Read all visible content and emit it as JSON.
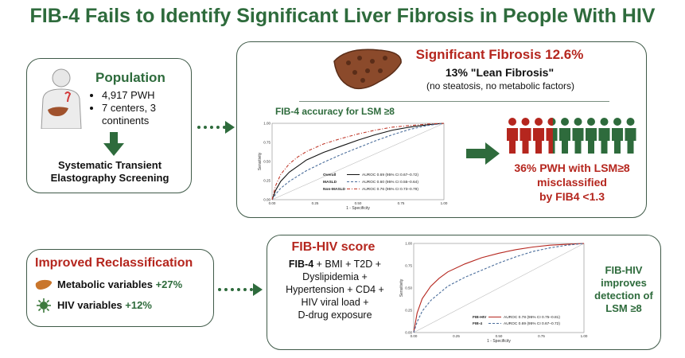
{
  "title": "FIB-4 Fails to Identify Significant Liver Fibrosis in People With HIV",
  "population": {
    "heading": "Population",
    "bullets": [
      "4,917 PWH",
      "7 centers, 3 continents"
    ],
    "screening": "Systematic Transient Elastography Screening"
  },
  "fibrosis": {
    "heading": "Significant Fibrosis 12.6%",
    "lean": "13% \"Lean Fibrosis\"",
    "lean_note": "(no steatosis, no metabolic factors)"
  },
  "accuracy": {
    "heading": "FIB-4 accuracy for LSM ≥8"
  },
  "misclassified": {
    "line1": "36% PWH with LSM≥8",
    "line2": "misclassified",
    "line3": "by FIB4 <1.3",
    "people_total": 10,
    "people_red": 3.6,
    "red_color": "#b5261e",
    "green_color": "#2e6b3c"
  },
  "reclassification": {
    "heading": "Improved Reclassification",
    "metabolic_label": "Metabolic variables",
    "metabolic_value": "+27%",
    "hiv_label": "HIV variables",
    "hiv_value": "+12%"
  },
  "fibhiv": {
    "heading": "FIB-HIV score",
    "formula_bold": "FIB-4",
    "formula_lines": [
      "+ BMI + T2D +",
      "Dyslipidemia +",
      "Hypertension + CD4 +",
      "HIV viral load +",
      "D-drug exposure"
    ],
    "improves": [
      "FIB-HIV",
      "improves",
      "detection of",
      "LSM ≥8"
    ]
  },
  "chart_data": [
    {
      "type": "line",
      "title": "FIB-4 accuracy for LSM ≥8",
      "xlabel": "1 - Specificity",
      "ylabel": "Sensitivity",
      "xlim": [
        0,
        1
      ],
      "ylim": [
        0,
        1
      ],
      "x_ticks": [
        "0.00",
        "0.25",
        "0.50",
        "0.75",
        "1.00"
      ],
      "y_ticks": [
        "0.00",
        "0.25",
        "0.50",
        "0.75",
        "1.00"
      ],
      "legend_position": "bottom-right",
      "series": [
        {
          "name": "Overall",
          "label": "AUROC 0.69 (95% CI 0.67–0.72)",
          "color": "#111111",
          "dash": "solid",
          "x": [
            0,
            0.02,
            0.05,
            0.1,
            0.15,
            0.2,
            0.3,
            0.4,
            0.5,
            0.6,
            0.7,
            0.8,
            0.9,
            1.0
          ],
          "y": [
            0,
            0.12,
            0.24,
            0.36,
            0.44,
            0.52,
            0.62,
            0.7,
            0.78,
            0.85,
            0.91,
            0.95,
            0.98,
            1.0
          ]
        },
        {
          "name": "MASLD",
          "label": "AUROC 0.60 (95% CI 0.55–0.64)",
          "color": "#4a6d9b",
          "dash": "dashed",
          "x": [
            0,
            0.02,
            0.05,
            0.1,
            0.15,
            0.2,
            0.3,
            0.4,
            0.5,
            0.6,
            0.7,
            0.8,
            0.9,
            1.0
          ],
          "y": [
            0,
            0.07,
            0.15,
            0.24,
            0.31,
            0.38,
            0.49,
            0.59,
            0.68,
            0.77,
            0.85,
            0.92,
            0.97,
            1.0
          ]
        },
        {
          "name": "Non-MASLD",
          "label": "AUROC 0.76 (95% CI 0.73–0.79)",
          "color": "#c0392b",
          "dash": "dashdot",
          "x": [
            0,
            0.02,
            0.05,
            0.1,
            0.15,
            0.2,
            0.3,
            0.4,
            0.5,
            0.6,
            0.7,
            0.8,
            0.9,
            1.0
          ],
          "y": [
            0,
            0.18,
            0.33,
            0.47,
            0.56,
            0.63,
            0.73,
            0.8,
            0.86,
            0.91,
            0.95,
            0.97,
            0.99,
            1.0
          ]
        }
      ]
    },
    {
      "type": "line",
      "xlabel": "1 - Specificity",
      "ylabel": "Sensitivity",
      "xlim": [
        0,
        1
      ],
      "ylim": [
        0,
        1
      ],
      "x_ticks": [
        "0.00",
        "0.25",
        "0.50",
        "0.75",
        "1.00"
      ],
      "y_ticks": [
        "0.00",
        "0.25",
        "0.50",
        "0.75",
        "1.00"
      ],
      "legend_position": "bottom-right",
      "series": [
        {
          "name": "FIB-HIV",
          "label": "AUROC 0.78 (95% CI 0.75–0.81)",
          "color": "#b5261e",
          "dash": "solid",
          "x": [
            0,
            0.02,
            0.05,
            0.1,
            0.15,
            0.2,
            0.3,
            0.4,
            0.5,
            0.6,
            0.7,
            0.8,
            0.9,
            1.0
          ],
          "y": [
            0,
            0.22,
            0.38,
            0.52,
            0.61,
            0.68,
            0.77,
            0.84,
            0.89,
            0.93,
            0.96,
            0.98,
            0.99,
            1.0
          ]
        },
        {
          "name": "FIB-4",
          "label": "AUROC 0.69 (95% CI 0.67–0.72)",
          "color": "#4a6d9b",
          "dash": "dashed",
          "x": [
            0,
            0.02,
            0.05,
            0.1,
            0.15,
            0.2,
            0.3,
            0.4,
            0.5,
            0.6,
            0.7,
            0.8,
            0.9,
            1.0
          ],
          "y": [
            0,
            0.12,
            0.24,
            0.36,
            0.44,
            0.52,
            0.62,
            0.7,
            0.78,
            0.85,
            0.91,
            0.95,
            0.98,
            1.0
          ]
        }
      ]
    }
  ]
}
